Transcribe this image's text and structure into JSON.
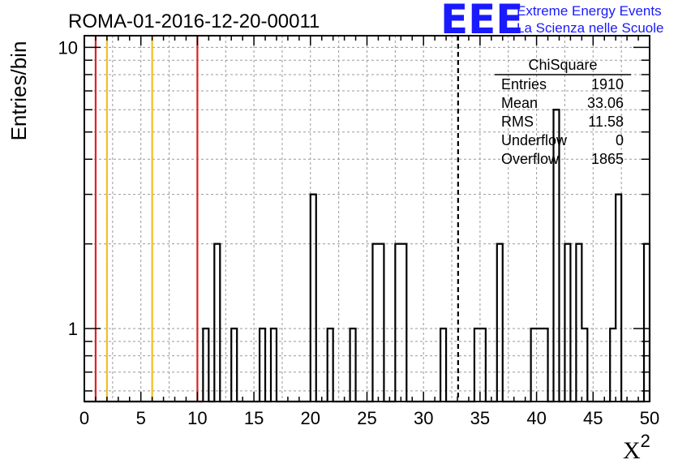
{
  "chart_data": {
    "type": "histogram",
    "title": "ROMA-01-2016-12-20-00011",
    "xlabel": "X",
    "xlabel_superscript": "2",
    "ylabel": "Entries/bin",
    "xlim": [
      0,
      50
    ],
    "ylim": [
      0.55,
      11
    ],
    "yscale": "log",
    "grid": true,
    "bin_width": 0.5,
    "x_ticks": [
      "0",
      "5",
      "10",
      "15",
      "20",
      "25",
      "30",
      "35",
      "40",
      "45",
      "50"
    ],
    "y_ticks": [
      "1",
      "10"
    ],
    "bins": [
      {
        "x": 10.5,
        "value": 1
      },
      {
        "x": 11.5,
        "value": 2
      },
      {
        "x": 13.0,
        "value": 1
      },
      {
        "x": 15.5,
        "value": 1
      },
      {
        "x": 16.5,
        "value": 1
      },
      {
        "x": 20.0,
        "value": 3
      },
      {
        "x": 21.5,
        "value": 1
      },
      {
        "x": 23.5,
        "value": 1
      },
      {
        "x": 25.5,
        "value": 2
      },
      {
        "x": 26.0,
        "value": 2
      },
      {
        "x": 27.5,
        "value": 2
      },
      {
        "x": 28.0,
        "value": 2
      },
      {
        "x": 31.5,
        "value": 1
      },
      {
        "x": 34.5,
        "value": 1
      },
      {
        "x": 35.0,
        "value": 1
      },
      {
        "x": 36.5,
        "value": 2
      },
      {
        "x": 39.5,
        "value": 1
      },
      {
        "x": 40.0,
        "value": 1
      },
      {
        "x": 40.5,
        "value": 1
      },
      {
        "x": 41.5,
        "value": 6
      },
      {
        "x": 42.5,
        "value": 2
      },
      {
        "x": 43.5,
        "value": 2
      },
      {
        "x": 44.0,
        "value": 1
      },
      {
        "x": 46.5,
        "value": 1
      },
      {
        "x": 47.0,
        "value": 3
      },
      {
        "x": 49.5,
        "value": 2
      }
    ],
    "vertical_lines": [
      {
        "x": 1,
        "color": "#dd2222",
        "style": "solid"
      },
      {
        "x": 2,
        "color": "#f0c020",
        "style": "solid"
      },
      {
        "x": 6,
        "color": "#f0c020",
        "style": "solid"
      },
      {
        "x": 10,
        "color": "#dd2222",
        "style": "solid"
      },
      {
        "x": 33.06,
        "color": "#000000",
        "style": "dashed"
      }
    ],
    "stats_box": {
      "title": "ChiSquare",
      "rows": [
        {
          "label": "Entries",
          "value": "1910"
        },
        {
          "label": "Mean",
          "value": "33.06"
        },
        {
          "label": "RMS",
          "value": "11.58"
        },
        {
          "label": "Underflow",
          "value": "0"
        },
        {
          "label": "Overflow",
          "value": "1865"
        }
      ]
    }
  },
  "logo": {
    "mark": "EEE",
    "line1": "Extreme Energy Events",
    "line2": "La Scienza nelle Scuole",
    "color": "#1a1aff"
  }
}
